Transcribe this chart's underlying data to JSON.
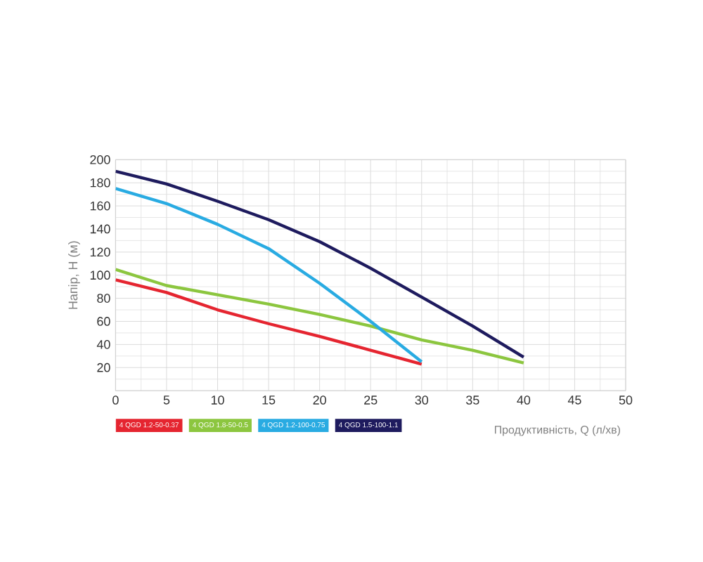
{
  "chart_data": {
    "type": "line",
    "xlabel": "Продуктивність, Q (л/хв)",
    "ylabel": "Напір, H (м)",
    "xlim": [
      0,
      50
    ],
    "ylim": [
      0,
      200
    ],
    "xticks": [
      0,
      5,
      10,
      15,
      20,
      25,
      30,
      35,
      40,
      45,
      50
    ],
    "yticks": [
      {
        "value": 0,
        "label": null
      },
      20,
      40,
      60,
      80,
      100,
      120,
      140,
      160,
      180,
      200
    ],
    "grid": true,
    "legend": "bottom",
    "marker": "none",
    "line_style": "solid",
    "series": [
      {
        "name": "4 QGD 1.2-50-0.37",
        "color": "#e52530",
        "x": [
          0,
          5,
          10,
          15,
          20,
          25,
          30
        ],
        "values": [
          96,
          85,
          70,
          58,
          47,
          35,
          23
        ]
      },
      {
        "name": "4 QGD 1.8-50-0.5",
        "color": "#8cc63f",
        "x": [
          0,
          5,
          10,
          15,
          20,
          25,
          30,
          35,
          40
        ],
        "values": [
          105,
          91,
          83,
          75,
          66,
          56,
          44,
          35,
          24
        ]
      },
      {
        "name": "4 QGD 1.2-100-0.75",
        "color": "#29abe2",
        "x": [
          0,
          5,
          10,
          15,
          20,
          25,
          30
        ],
        "values": [
          175,
          162,
          144,
          123,
          93,
          60,
          25
        ]
      },
      {
        "name": "4 QGD 1.5-100-1.1",
        "color": "#1e1b5e",
        "x": [
          0,
          5,
          10,
          15,
          20,
          25,
          30,
          35,
          40
        ],
        "values": [
          190,
          179,
          164,
          148,
          129,
          106,
          81,
          56,
          29
        ]
      }
    ]
  }
}
